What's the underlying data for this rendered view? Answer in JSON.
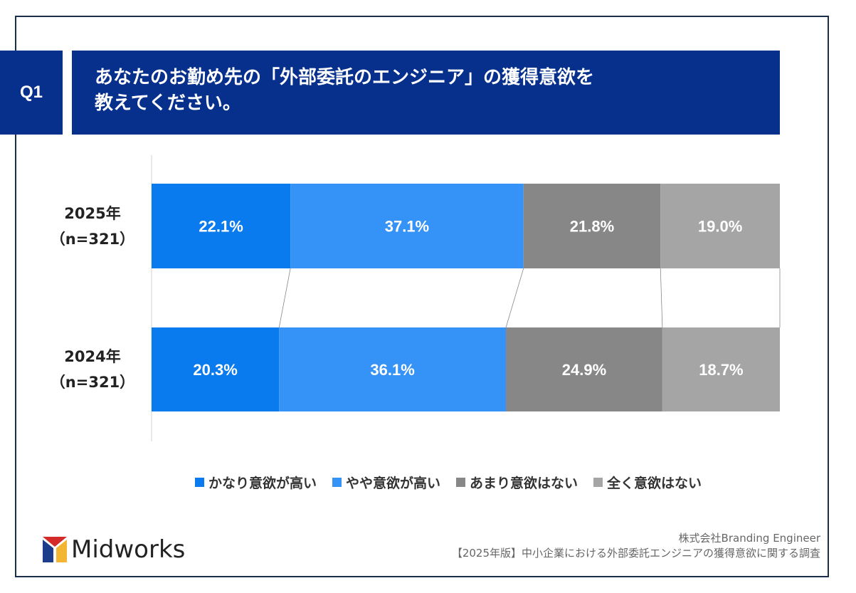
{
  "header": {
    "q_label": "Q1",
    "title_line1": "あなたのお勤め先の「外部委託のエンジニア」の獲得意欲を",
    "title_line2": "教えてください。"
  },
  "chart_data": {
    "type": "bar",
    "orientation": "horizontal-stacked-100",
    "categories": [
      "2025年（n=321）",
      "2024年（n=321）"
    ],
    "category_lines": [
      [
        "2025年",
        "（n=321）"
      ],
      [
        "2024年",
        "（n=321）"
      ]
    ],
    "series": [
      {
        "name": "かなり意欲が高い",
        "values": [
          22.1,
          20.3
        ],
        "labels": [
          "22.1%",
          "20.3%"
        ],
        "color": "#0a7aef"
      },
      {
        "name": "やや意欲が高い",
        "values": [
          37.1,
          36.1
        ],
        "labels": [
          "37.1%",
          "36.1%"
        ],
        "color": "#3592f7"
      },
      {
        "name": "あまり意欲はない",
        "values": [
          21.8,
          24.9
        ],
        "labels": [
          "21.8%",
          "24.9%"
        ],
        "color": "#878787"
      },
      {
        "name": "全く意欲はない",
        "values": [
          19.0,
          18.7
        ],
        "labels": [
          "19.0%",
          "18.7%"
        ],
        "color": "#a5a5a5"
      }
    ],
    "xlim": [
      0,
      100
    ],
    "legend": "bottom",
    "grid": false,
    "series_lines": true
  },
  "footer": {
    "logo": "Midworks",
    "company": "株式会社Branding Engineer",
    "survey": "【2025年版】中小企業における外部委託エンジニアの獲得意欲に関する調査"
  }
}
